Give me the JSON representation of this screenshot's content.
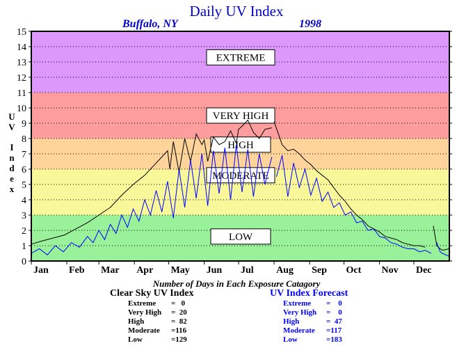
{
  "chart_data": {
    "type": "line",
    "title": "Daily UV Index",
    "location": "Buffalo, NY",
    "year": "1998",
    "ylabel": "UV Index",
    "ylim": [
      0,
      15
    ],
    "yticks": [
      0,
      1,
      2,
      3,
      4,
      5,
      6,
      7,
      8,
      9,
      10,
      11,
      12,
      13,
      14,
      15
    ],
    "months": [
      "Jan",
      "Feb",
      "Mar",
      "Apr",
      "May",
      "Jun",
      "Jul",
      "Aug",
      "Sep",
      "Oct",
      "Nov",
      "Dec"
    ],
    "month_start_days": [
      1,
      32,
      60,
      91,
      121,
      152,
      182,
      213,
      244,
      274,
      305,
      335
    ],
    "xlim": [
      1,
      366
    ],
    "grid": "dotted horizontal",
    "bands": [
      {
        "label": "LOW",
        "from": 0,
        "to": 3,
        "color": "#99f299",
        "label_y": 1.6
      },
      {
        "label": "MODERATE",
        "from": 3,
        "to": 6,
        "color": "#f8f89b",
        "label_y": 5.6
      },
      {
        "label": "HIGH",
        "from": 6,
        "to": 8,
        "color": "#fed49a",
        "label_y": 7.6
      },
      {
        "label": "VERY HIGH",
        "from": 8,
        "to": 11,
        "color": "#fd9d9d",
        "label_y": 9.5
      },
      {
        "label": "EXTREME",
        "from": 11,
        "to": 15,
        "color": "#dc99fb",
        "label_y": 13.3
      }
    ],
    "series": [
      {
        "name": "Clear Sky UV Index",
        "color": "#000000",
        "x": [
          1,
          10,
          20,
          30,
          40,
          50,
          60,
          70,
          80,
          90,
          100,
          110,
          115,
          120,
          122,
          125,
          130,
          135,
          140,
          145,
          150,
          152,
          155,
          160,
          165,
          170,
          175,
          180,
          182,
          185,
          190,
          195,
          200,
          205,
          211,
          212,
          213,
          220,
          225,
          230,
          235,
          240,
          245,
          250,
          255,
          260,
          265,
          270,
          275,
          280,
          285,
          290,
          295,
          300,
          305,
          310,
          315,
          320,
          325,
          330,
          335,
          340,
          345,
          350,
          352,
          355,
          358,
          360,
          366
        ],
        "y": [
          1.1,
          1.3,
          1.5,
          1.7,
          2.1,
          2.5,
          3.0,
          3.5,
          4.3,
          5.0,
          5.6,
          6.4,
          6.8,
          7.2,
          6.0,
          7.8,
          5.8,
          8.0,
          6.5,
          8.3,
          7.6,
          7.9,
          6.5,
          8.1,
          7.6,
          7.8,
          8.5,
          7.7,
          8.6,
          8.8,
          9.2,
          8.4,
          8.0,
          8.6,
          8.7,
          null,
          9.1,
          7.6,
          7.2,
          7.3,
          7.0,
          6.6,
          6.3,
          5.9,
          5.6,
          5.3,
          4.8,
          4.3,
          3.9,
          3.4,
          3.0,
          2.7,
          2.3,
          2.1,
          1.9,
          1.6,
          1.5,
          1.4,
          1.2,
          1.1,
          1.0,
          1.0,
          0.9,
          null,
          2.3,
          1.0,
          0.8,
          0.7,
          0.8
        ]
      },
      {
        "name": "UV Index Forecast",
        "color": "#0000ff",
        "x": [
          1,
          8,
          15,
          22,
          29,
          36,
          43,
          50,
          55,
          60,
          65,
          70,
          75,
          80,
          85,
          90,
          95,
          100,
          105,
          110,
          115,
          120,
          125,
          130,
          135,
          140,
          145,
          150,
          155,
          160,
          165,
          170,
          175,
          180,
          185,
          190,
          195,
          200,
          205,
          211,
          212,
          215,
          220,
          225,
          230,
          235,
          240,
          245,
          250,
          255,
          260,
          265,
          270,
          275,
          280,
          285,
          290,
          295,
          300,
          305,
          310,
          315,
          320,
          325,
          330,
          335,
          340,
          345,
          350,
          352,
          355,
          358,
          360,
          366
        ],
        "y": [
          0.5,
          0.8,
          0.4,
          1.0,
          0.6,
          1.2,
          0.9,
          1.6,
          1.2,
          2.0,
          1.4,
          2.4,
          1.8,
          3.0,
          2.2,
          3.4,
          2.6,
          4.0,
          3.0,
          4.6,
          3.2,
          5.2,
          2.8,
          6.0,
          3.5,
          6.6,
          4.1,
          7.0,
          3.6,
          7.2,
          4.4,
          7.4,
          4.0,
          7.6,
          4.5,
          7.3,
          4.2,
          7.0,
          5.0,
          6.8,
          null,
          5.5,
          6.9,
          4.2,
          6.4,
          4.8,
          6.0,
          4.3,
          5.4,
          3.9,
          4.5,
          3.5,
          3.8,
          3.0,
          3.2,
          2.5,
          2.6,
          2.0,
          2.1,
          1.6,
          1.5,
          1.2,
          1.1,
          0.9,
          0.8,
          0.8,
          0.6,
          0.7,
          0.5,
          null,
          1.2,
          0.6,
          0.5,
          0.3
        ]
      }
    ]
  },
  "days_caption": "Number of Days in Each Exposure Catagory",
  "stats_left": {
    "title": "Clear Sky UV Index",
    "rows": [
      {
        "name": "Extreme",
        "value": "=   0"
      },
      {
        "name": "Very High",
        "value": "=  20"
      },
      {
        "name": "High",
        "value": "=  82"
      },
      {
        "name": "Moderate",
        "value": "=116"
      },
      {
        "name": "Low",
        "value": "=129"
      }
    ]
  },
  "stats_right": {
    "title": "UV Index Forecast",
    "rows": [
      {
        "name": "Extreme",
        "value": "=    0"
      },
      {
        "name": "Very High",
        "value": "=    0"
      },
      {
        "name": "High",
        "value": "=  47"
      },
      {
        "name": "Moderate",
        "value": "=117"
      },
      {
        "name": "Low",
        "value": "=183"
      }
    ]
  },
  "colors": {
    "title": "#0000cc",
    "forecast": "#0000ff",
    "clear_sky": "#000000"
  }
}
